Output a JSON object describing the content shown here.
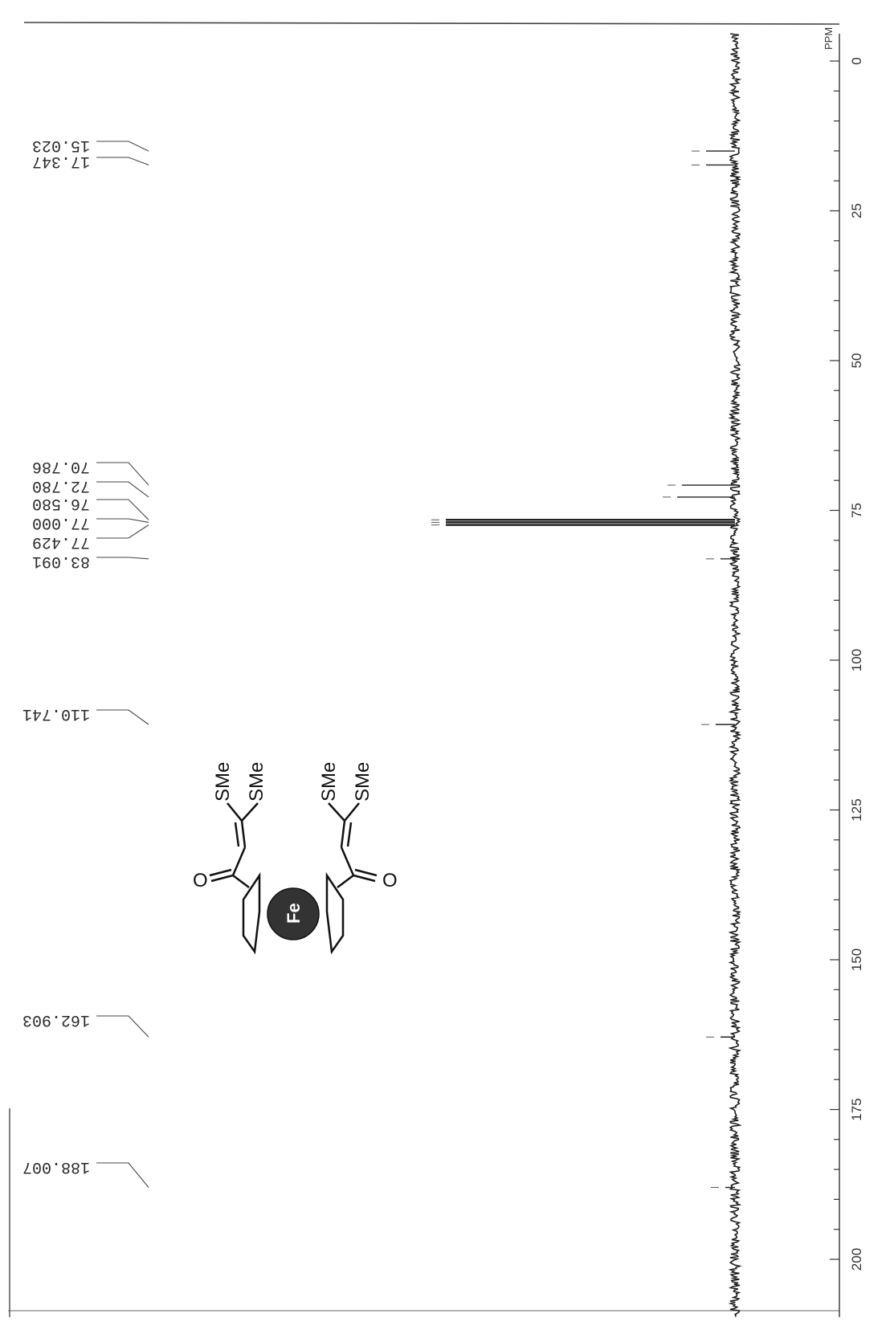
{
  "chart_data": {
    "type": "line",
    "xlabel": "PPM",
    "xlim": [
      0,
      200
    ],
    "x_ticks": [
      0,
      25,
      50,
      75,
      100,
      125,
      150,
      175,
      200
    ],
    "peaks": [
      {
        "ppm": 15.023,
        "label": "15.023",
        "intensity": 0.3
      },
      {
        "ppm": 17.347,
        "label": "17.347",
        "intensity": 0.3
      },
      {
        "ppm": 70.786,
        "label": "70.786",
        "intensity": 0.55
      },
      {
        "ppm": 72.78,
        "label": "72.780",
        "intensity": 0.6
      },
      {
        "ppm": 76.58,
        "label": "76.580",
        "intensity": 3.0
      },
      {
        "ppm": 77.0,
        "label": "77.000",
        "intensity": 3.0
      },
      {
        "ppm": 77.429,
        "label": "77.429",
        "intensity": 3.0
      },
      {
        "ppm": 83.091,
        "label": "83.091",
        "intensity": 0.15
      },
      {
        "ppm": 110.741,
        "label": "110.741",
        "intensity": 0.2
      },
      {
        "ppm": 162.903,
        "label": "162.903",
        "intensity": 0.15
      },
      {
        "ppm": 188.007,
        "label": "188.007",
        "intensity": 0.1
      }
    ]
  },
  "structure": {
    "metal": "Fe",
    "groups": [
      "SMe",
      "SMe",
      "SMe",
      "SMe"
    ],
    "carbonyl_o": [
      "O",
      "O"
    ]
  }
}
